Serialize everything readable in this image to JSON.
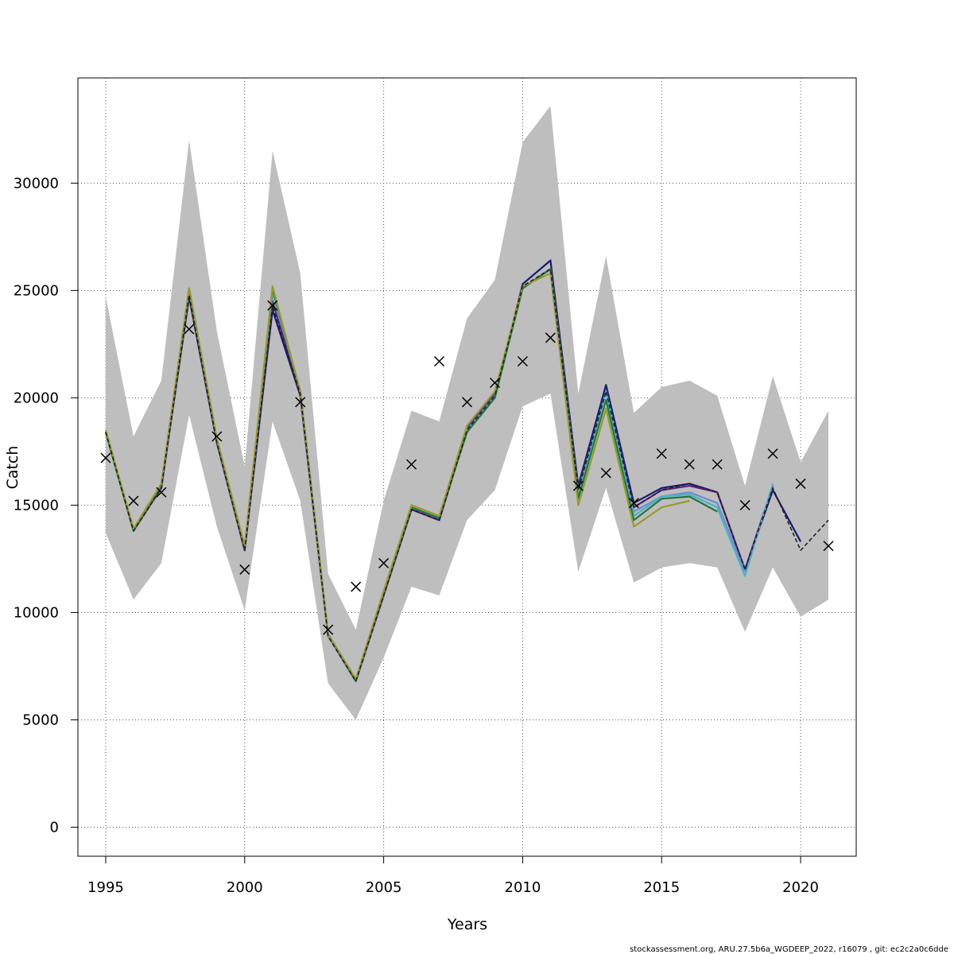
{
  "chart_data": {
    "type": "line",
    "title": "",
    "xlabel": "Years",
    "ylabel": "Catch",
    "xlim": [
      1994,
      2022
    ],
    "ylim": [
      -1350,
      34900
    ],
    "x_ticks": [
      1995,
      2000,
      2005,
      2010,
      2015,
      2020
    ],
    "y_ticks": [
      0,
      5000,
      10000,
      15000,
      20000,
      25000,
      30000
    ],
    "grid": true,
    "confidence_band": {
      "x": [
        1995,
        1996,
        1997,
        1998,
        1999,
        2000,
        2001,
        2002,
        2003,
        2004,
        2005,
        2006,
        2007,
        2008,
        2009,
        2010,
        2011,
        2012,
        2013,
        2014,
        2015,
        2016,
        2017,
        2018,
        2019,
        2020,
        2021
      ],
      "upper": [
        24700,
        18200,
        20800,
        32000,
        23100,
        16800,
        31500,
        25800,
        11800,
        9200,
        15200,
        19400,
        18900,
        23700,
        25500,
        31900,
        33600,
        20200,
        26600,
        19300,
        20500,
        20800,
        20100,
        15900,
        21000,
        17000,
        19400
      ],
      "lower": [
        13700,
        10600,
        12300,
        19200,
        14000,
        10100,
        18900,
        15200,
        6700,
        5000,
        7900,
        11200,
        10800,
        14300,
        15700,
        19600,
        20200,
        11900,
        15800,
        11400,
        12100,
        12300,
        12100,
        9100,
        12100,
        9800,
        10600
      ],
      "color": "#bebebe"
    },
    "observed": {
      "marker": "x",
      "x": [
        1995,
        1996,
        1997,
        1998,
        1999,
        2000,
        2001,
        2002,
        2003,
        2004,
        2005,
        2006,
        2007,
        2008,
        2009,
        2010,
        2011,
        2012,
        2013,
        2014,
        2015,
        2016,
        2017,
        2018,
        2019,
        2020,
        2021
      ],
      "values": [
        17200,
        15200,
        15600,
        23200,
        18200,
        12000,
        24300,
        19800,
        9200,
        11200,
        12300,
        16900,
        21700,
        19800,
        20700,
        21700,
        22800,
        15900,
        16500,
        15100,
        17400,
        16900,
        16900,
        15000,
        17400,
        16000,
        13100
      ]
    },
    "series": [
      {
        "color": "#191970",
        "x": [
          1995,
          1996,
          1997,
          1998,
          1999,
          2000,
          2001,
          2002,
          2003,
          2004,
          2005,
          2006,
          2007,
          2008,
          2009,
          2010,
          2011,
          2012,
          2013,
          2014,
          2015,
          2016,
          2017,
          2018,
          2019,
          2020
        ],
        "values": [
          18400,
          13800,
          15800,
          24700,
          17900,
          12900,
          24100,
          20100,
          8900,
          6800,
          10800,
          14800,
          14300,
          18500,
          20100,
          25300,
          26400,
          15900,
          20600,
          15100,
          15800,
          16000,
          15600,
          12000,
          15700,
          13300
        ]
      },
      {
        "color": "#5b1f8a",
        "x": [
          1995,
          1996,
          1997,
          1998,
          1999,
          2000,
          2001,
          2002,
          2003,
          2004,
          2005,
          2006,
          2007,
          2008,
          2009,
          2010,
          2011,
          2012,
          2013,
          2014,
          2015,
          2016,
          2017,
          2018,
          2019
        ],
        "values": [
          18400,
          13800,
          15800,
          24900,
          18000,
          12900,
          24500,
          20200,
          8900,
          6800,
          10800,
          14800,
          14300,
          18600,
          20200,
          25100,
          26000,
          15700,
          20300,
          14900,
          15700,
          15900,
          15600,
          12000,
          15900
        ]
      },
      {
        "color": "#6a8fd0",
        "x": [
          1995,
          1996,
          1997,
          1998,
          1999,
          2000,
          2001,
          2002,
          2003,
          2004,
          2005,
          2006,
          2007,
          2008,
          2009,
          2010,
          2011,
          2012,
          2013,
          2014,
          2015,
          2016,
          2017,
          2018
        ],
        "values": [
          18400,
          13800,
          15900,
          25000,
          18000,
          13000,
          24900,
          20300,
          8900,
          6800,
          10900,
          14900,
          14400,
          18500,
          20100,
          25100,
          26000,
          15600,
          20300,
          14700,
          15400,
          15600,
          15100,
          11900
        ]
      },
      {
        "color": "#48b2c8",
        "x": [
          1995,
          1996,
          1997,
          1998,
          1999,
          2000,
          2001,
          2002,
          2003,
          2004,
          2005,
          2006,
          2007,
          2008,
          2009,
          2010,
          2011,
          2012,
          2013,
          2014,
          2015,
          2016,
          2017,
          2018,
          2019
        ],
        "values": [
          18400,
          13800,
          15900,
          25000,
          18000,
          13000,
          25000,
          20300,
          9000,
          6800,
          10900,
          14900,
          14400,
          18500,
          20000,
          25100,
          26000,
          15400,
          20300,
          14500,
          15400,
          15500,
          14900,
          11700,
          16000
        ]
      },
      {
        "color": "#1f7a3a",
        "x": [
          1995,
          1996,
          1997,
          1998,
          1999,
          2000,
          2001,
          2002,
          2003,
          2004,
          2005,
          2006,
          2007,
          2008,
          2009,
          2010,
          2011,
          2012,
          2013,
          2014,
          2015,
          2016,
          2017
        ],
        "values": [
          18400,
          13800,
          15900,
          25100,
          18000,
          13000,
          25100,
          20300,
          9000,
          6800,
          10900,
          14900,
          14400,
          18400,
          20000,
          25100,
          26000,
          15300,
          19900,
          14300,
          15300,
          15400,
          14700
        ]
      },
      {
        "color": "#999a2a",
        "x": [
          1995,
          1996,
          1997,
          1998,
          1999,
          2000,
          2001,
          2002,
          2003,
          2004,
          2005,
          2006,
          2007,
          2008,
          2009,
          2010,
          2011,
          2012,
          2013,
          2014,
          2015,
          2016
        ],
        "values": [
          18500,
          13900,
          16000,
          25100,
          18100,
          13100,
          25200,
          20300,
          9000,
          6900,
          11000,
          15000,
          14500,
          18700,
          20300,
          25200,
          25800,
          15000,
          19500,
          14000,
          14900,
          15200
        ]
      },
      {
        "color": "#222222",
        "dashed": true,
        "x": [
          1995,
          1996,
          1997,
          1998,
          1999,
          2000,
          2001,
          2002,
          2003,
          2004,
          2005,
          2006,
          2007,
          2008,
          2009,
          2010,
          2011,
          2012,
          2013,
          2014,
          2015,
          2016,
          2017,
          2018,
          2019,
          2020,
          2021
        ],
        "values": [
          18400,
          13800,
          15800,
          24800,
          17900,
          12900,
          24300,
          20200,
          8900,
          6800,
          10800,
          14800,
          14300,
          18500,
          20100,
          25200,
          26000,
          15700,
          20300,
          14900,
          15700,
          16000,
          15600,
          12000,
          15800,
          12900,
          14300
        ]
      }
    ]
  },
  "footer": "stockassessment.org, ARU.27.5b6a_WGDEEP_2022, r16079 , git: ec2c2a0c6dde"
}
